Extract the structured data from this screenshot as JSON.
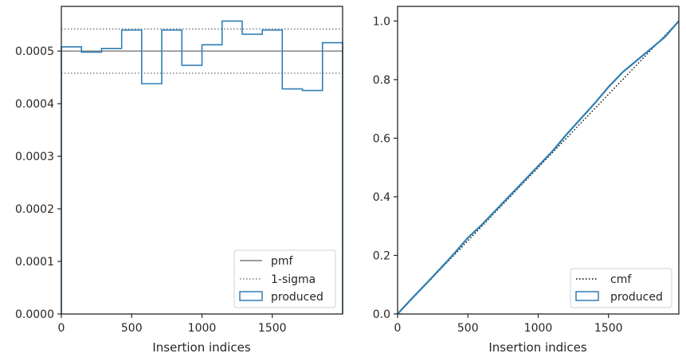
{
  "colors": {
    "produced": "#2f7fb5",
    "pmf": "#7a7a7a",
    "sigma": "#7a7a7a",
    "cmf": "#000000",
    "axes": "#262626"
  },
  "chart_data": [
    {
      "type": "step",
      "xlabel": "Insertion indices",
      "ylabel": "",
      "xlim": [
        0,
        2000
      ],
      "ylim": [
        0,
        0.000585
      ],
      "xticks": [
        0,
        500,
        1000,
        1500
      ],
      "xtick_labels": [
        "0",
        "500",
        "1000",
        "1500"
      ],
      "yticks": [
        0,
        0.0001,
        0.0002,
        0.0003,
        0.0004,
        0.0005
      ],
      "ytick_labels": [
        "0.0000",
        "0.0001",
        "0.0002",
        "0.0003",
        "0.0004",
        "0.0005"
      ],
      "bin_edges": [
        0,
        143,
        286,
        429,
        571,
        714,
        857,
        1000,
        1143,
        1286,
        1429,
        1571,
        1714,
        1857,
        2000
      ],
      "series": [
        {
          "name": "produced",
          "values": [
            0.000508,
            0.000498,
            0.000505,
            0.00054,
            0.000438,
            0.00054,
            0.000473,
            0.000512,
            0.000557,
            0.000532,
            0.00054,
            0.000428,
            0.000425,
            0.000516
          ]
        }
      ],
      "pmf": 0.0005,
      "sigma": [
        0.000458,
        0.000542
      ],
      "legend": {
        "placement": "lower-right",
        "entries": [
          "pmf",
          "1-sigma",
          "produced"
        ]
      },
      "grid": false
    },
    {
      "type": "line",
      "xlabel": "Insertion indices",
      "ylabel": "",
      "xlim": [
        0,
        2000
      ],
      "ylim": [
        0,
        1.05
      ],
      "xticks": [
        0,
        500,
        1000,
        1500
      ],
      "xtick_labels": [
        "0",
        "500",
        "1000",
        "1500"
      ],
      "yticks": [
        0,
        0.2,
        0.4,
        0.6,
        0.8,
        1.0
      ],
      "ytick_labels": [
        "0.0",
        "0.2",
        "0.4",
        "0.6",
        "0.8",
        "1.0"
      ],
      "series": [
        {
          "name": "cmf",
          "x": [
            0,
            2000
          ],
          "y": [
            0,
            1.0
          ]
        },
        {
          "name": "produced",
          "x": [
            0,
            100,
            200,
            300,
            400,
            500,
            600,
            700,
            800,
            900,
            1000,
            1100,
            1200,
            1300,
            1400,
            1500,
            1600,
            1700,
            1800,
            1900,
            2000
          ],
          "y": [
            0,
            0.052,
            0.102,
            0.153,
            0.205,
            0.26,
            0.305,
            0.355,
            0.405,
            0.455,
            0.505,
            0.555,
            0.612,
            0.665,
            0.718,
            0.775,
            0.825,
            0.865,
            0.905,
            0.945,
            1.0
          ]
        }
      ],
      "legend": {
        "placement": "lower-right",
        "entries": [
          "cmf",
          "produced"
        ]
      },
      "grid": false
    }
  ]
}
